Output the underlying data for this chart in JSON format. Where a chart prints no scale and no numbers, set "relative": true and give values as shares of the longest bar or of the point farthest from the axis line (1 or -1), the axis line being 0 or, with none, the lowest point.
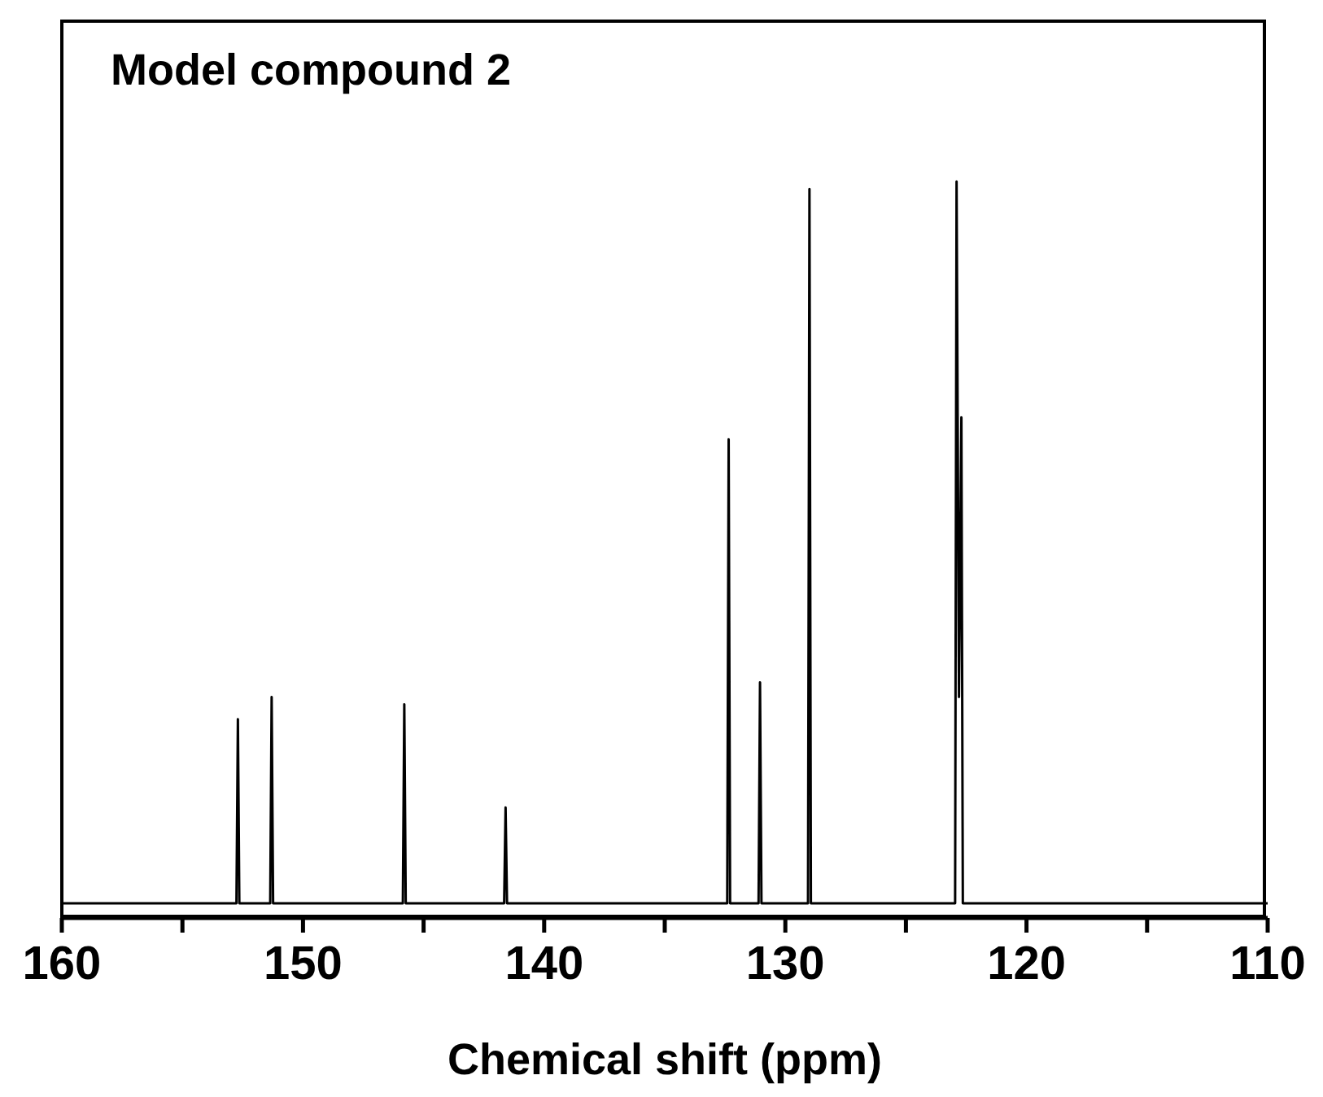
{
  "chart_data": {
    "type": "line",
    "title": "Model compound 2",
    "xlabel": "Chemical shift (ppm)",
    "relative": true,
    "x": [
      160,
      152.76,
      152.7,
      152.64,
      151.36,
      151.3,
      151.24,
      145.86,
      145.8,
      145.74,
      141.66,
      141.6,
      141.54,
      132.41,
      132.35,
      132.29,
      131.11,
      131.05,
      130.99,
      129.06,
      129.0,
      128.94,
      122.96,
      122.9,
      122.8,
      122.7,
      122.64,
      110
    ],
    "series": [
      {
        "color": "#000000",
        "values": [
          0.02,
          0.02,
          0.27,
          0.02,
          0.02,
          0.3,
          0.02,
          0.02,
          0.29,
          0.02,
          0.02,
          0.15,
          0.02,
          0.02,
          0.65,
          0.02,
          0.02,
          0.32,
          0.02,
          0.02,
          0.99,
          0.02,
          0.02,
          1,
          0.3,
          0.68,
          0.02,
          0.02
        ]
      }
    ],
    "xlim": [
      160,
      110
    ],
    "xticks": [
      160,
      {
        "value": 155,
        "label": null
      },
      150,
      {
        "value": 145,
        "label": null
      },
      140,
      {
        "value": 135,
        "label": null
      },
      130,
      {
        "value": 125,
        "label": null
      },
      120,
      {
        "value": 115,
        "label": null
      },
      110
    ],
    "grid": false,
    "legend": false,
    "marker": "none",
    "line_style": "solid"
  }
}
